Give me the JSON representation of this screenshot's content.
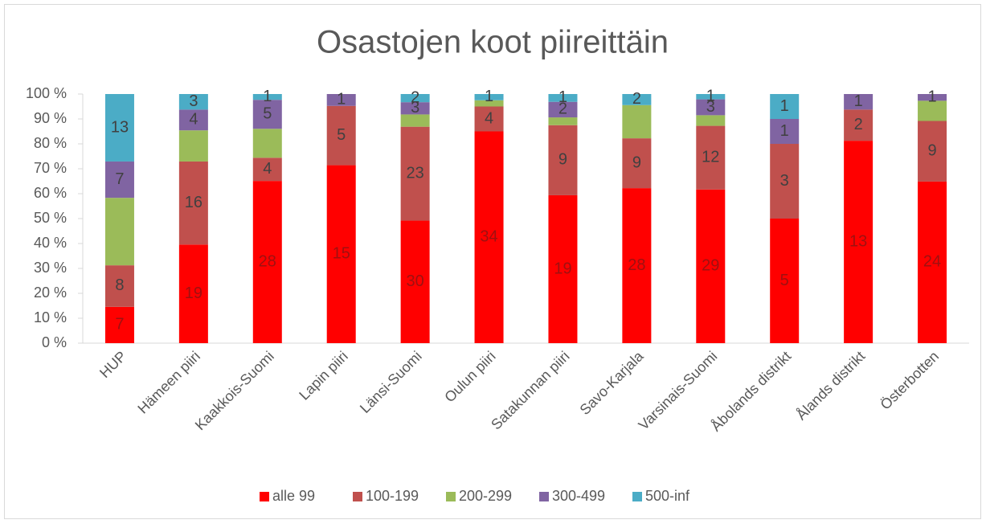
{
  "chart_data": {
    "type": "bar",
    "stacking": "percent",
    "title": "Osastojen koot piireittäin",
    "categories": [
      "HUP",
      "Hämeen piiri",
      "Kaakkois-Suomi",
      "Lapin piiri",
      "Länsi-Suomi",
      "Oulun piiri",
      "Satakunnan piiri",
      "Savo-Karjala",
      "Varsinais-Suomi",
      "Åbolands distrikt",
      "Ålands distrikt",
      "Österbotten"
    ],
    "series": [
      {
        "name": "alle 99",
        "color": "#ff0000",
        "values": [
          7,
          19,
          28,
          15,
          30,
          34,
          19,
          28,
          29,
          5,
          13,
          24
        ]
      },
      {
        "name": "100-199",
        "color": "#c0504d",
        "values": [
          8,
          16,
          4,
          5,
          23,
          4,
          9,
          9,
          12,
          3,
          2,
          9
        ]
      },
      {
        "name": "200-299",
        "color": "#9bbb59",
        "show_labels": false,
        "values": [
          13,
          6,
          5,
          0,
          3,
          1,
          1,
          6,
          2,
          0,
          0,
          3
        ]
      },
      {
        "name": "300-499",
        "color": "#8064a2",
        "values": [
          7,
          4,
          5,
          1,
          3,
          0,
          2,
          0,
          3,
          1,
          1,
          1
        ]
      },
      {
        "name": "500-inf",
        "color": "#4bacc6",
        "values": [
          13,
          3,
          1,
          0,
          2,
          1,
          1,
          2,
          1,
          1,
          0,
          0
        ]
      }
    ],
    "ylim": [
      0,
      100
    ],
    "yticks": [
      {
        "value": 0,
        "label": "0 %"
      },
      {
        "value": 10,
        "label": "10 %"
      },
      {
        "value": 20,
        "label": "20 %"
      },
      {
        "value": 30,
        "label": "30 %"
      },
      {
        "value": 40,
        "label": "40 %"
      },
      {
        "value": 50,
        "label": "50 %"
      },
      {
        "value": 60,
        "label": "60 %"
      },
      {
        "value": 70,
        "label": "70 %"
      },
      {
        "value": 80,
        "label": "80 %"
      },
      {
        "value": 90,
        "label": "90 %"
      },
      {
        "value": 100,
        "label": "100 %"
      }
    ],
    "legend": "bottom"
  }
}
